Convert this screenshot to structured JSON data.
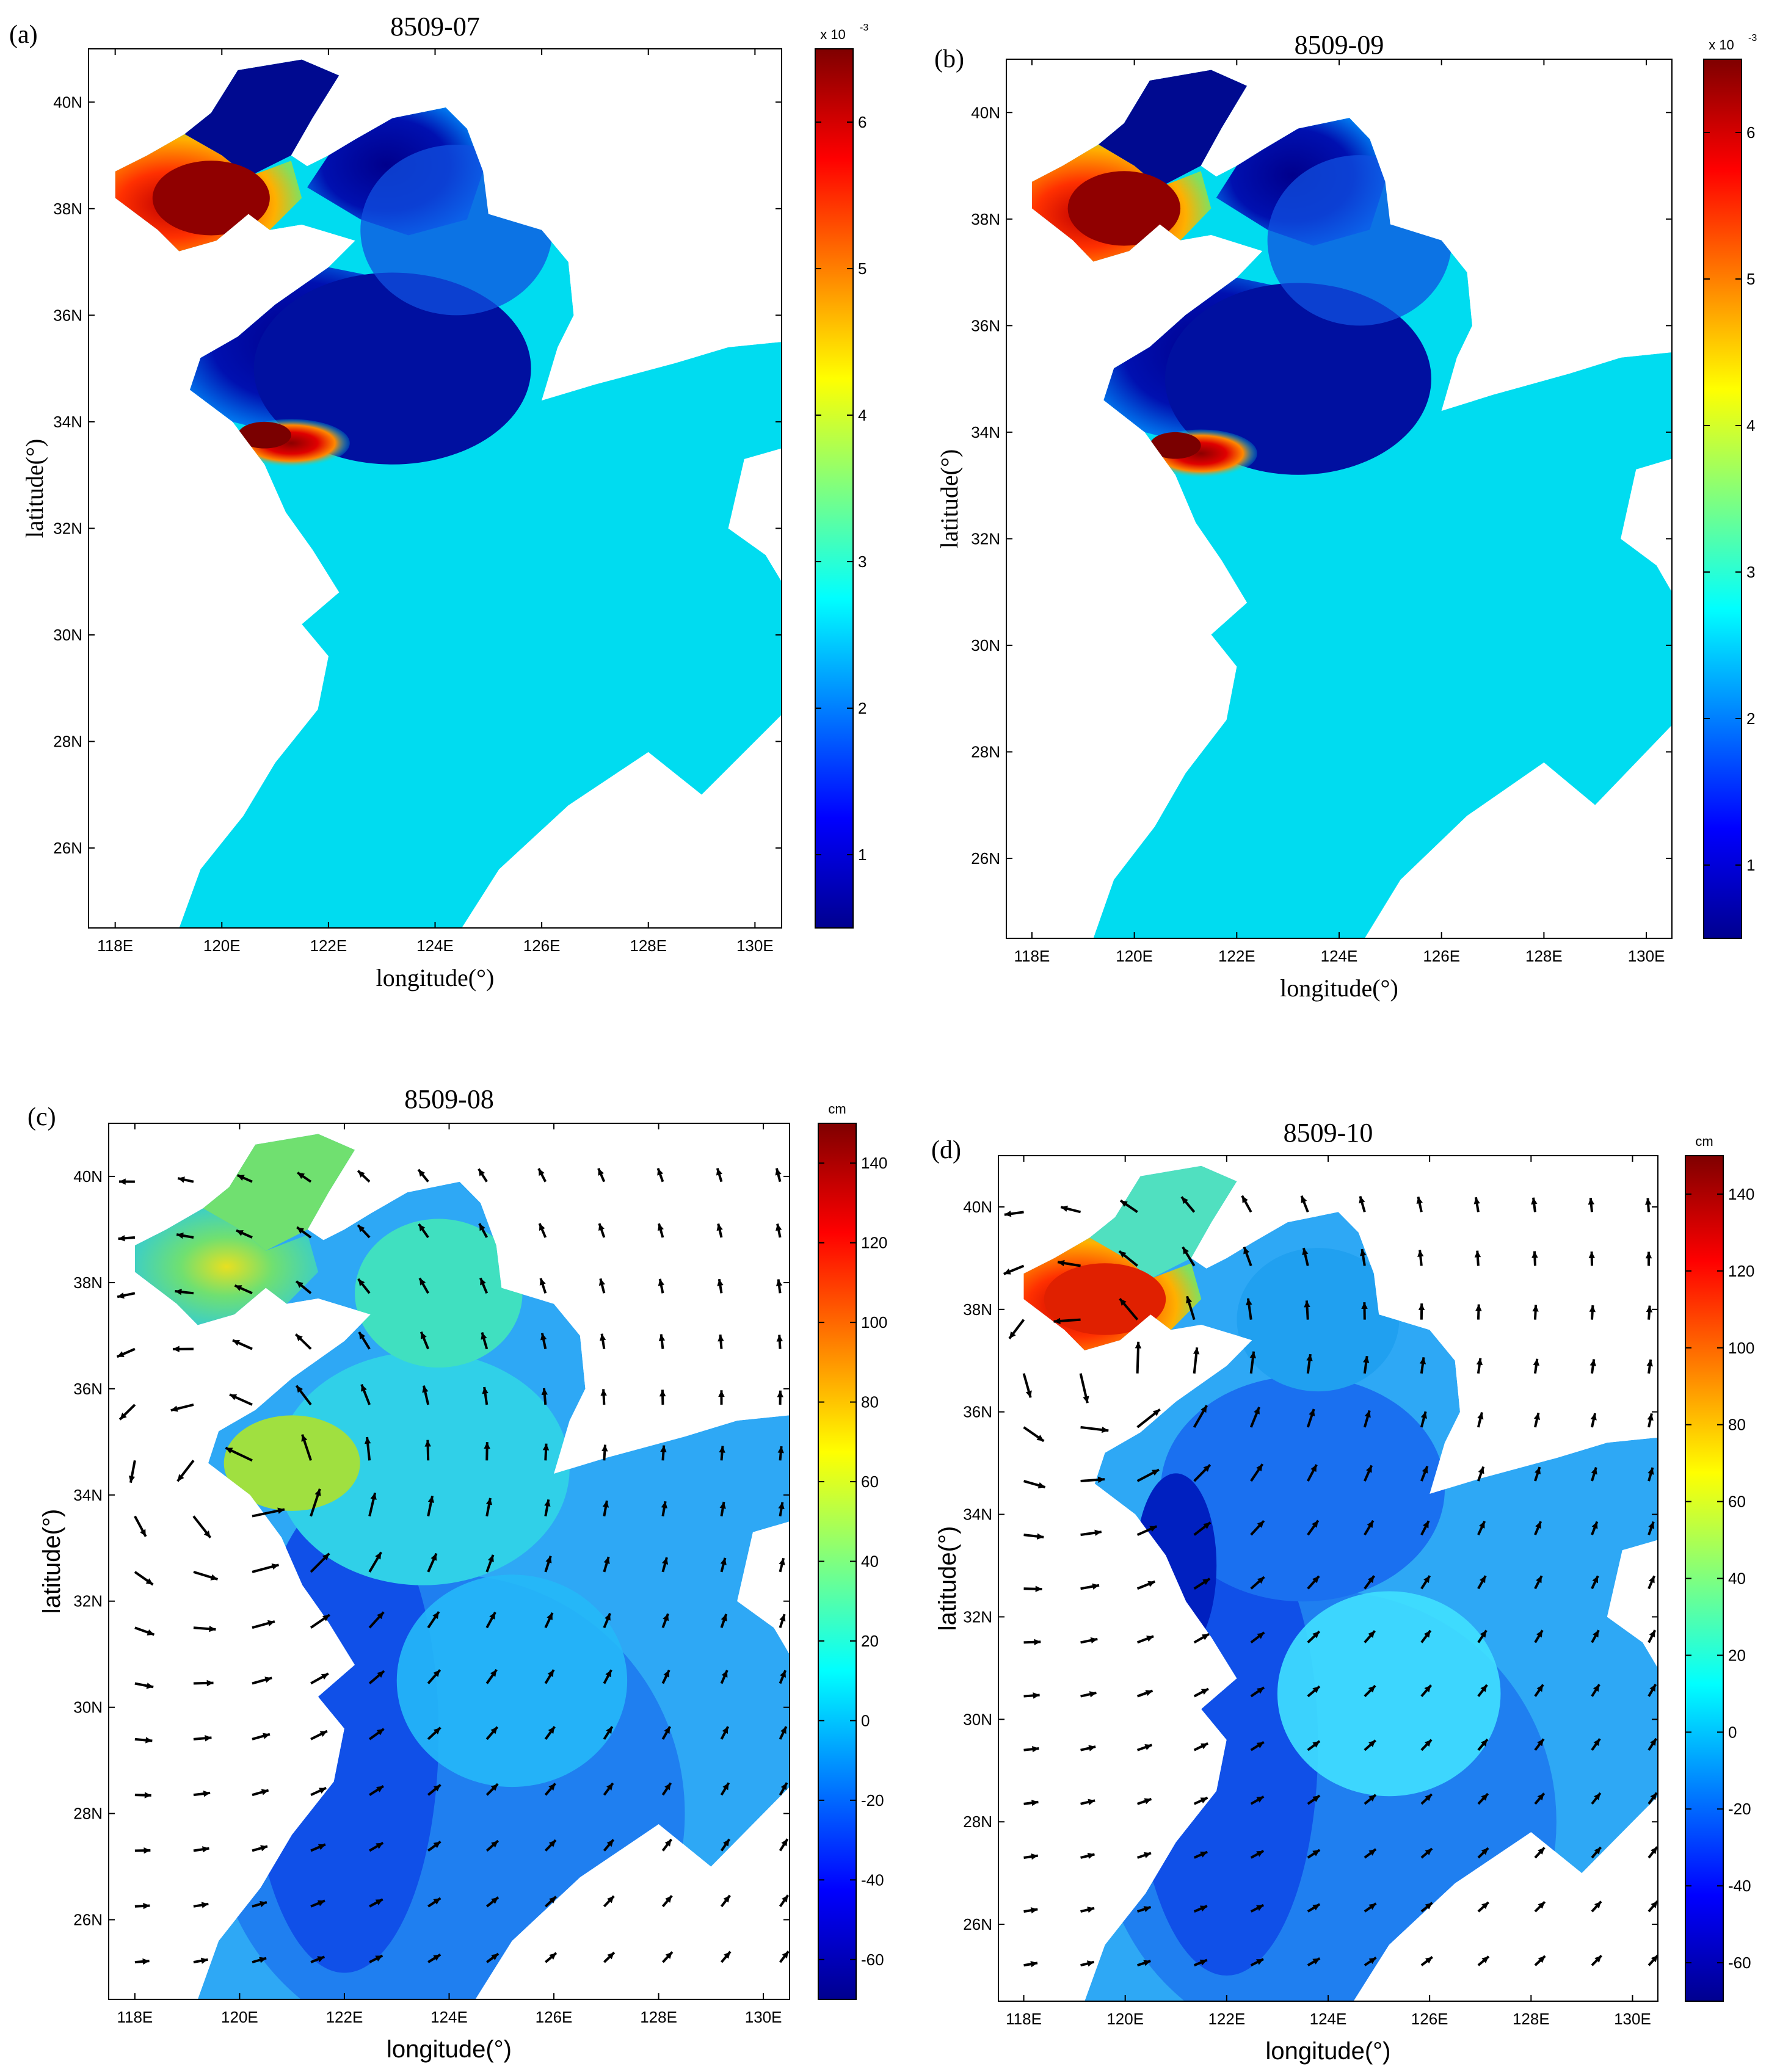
{
  "colors": {
    "jet": [
      "#00008f",
      "#0000ff",
      "#007fff",
      "#00ffff",
      "#7fff7f",
      "#ffff00",
      "#ff7f00",
      "#ff0000",
      "#7f0000"
    ],
    "sea_plain": "#00ccee",
    "arrow": "#000000"
  },
  "panels": [
    {
      "id": "a",
      "tag": "(a)",
      "title": "8509-07",
      "xlabel": "longitude(°)",
      "ylabel": "latitude(°)",
      "xticks": [
        "118E",
        "120E",
        "122E",
        "124E",
        "126E",
        "128E",
        "130E"
      ],
      "yticks": [
        "26N",
        "28N",
        "30N",
        "32N",
        "34N",
        "36N",
        "38N",
        "40N"
      ],
      "colorbar": {
        "unit": "x 10",
        "exponent": "-3",
        "ticks": [
          "1",
          "2",
          "3",
          "4",
          "5",
          "6"
        ],
        "range": [
          0.5,
          6.5
        ]
      },
      "icon": "contour-field"
    },
    {
      "id": "b",
      "tag": "(b)",
      "title": "8509-09",
      "xlabel": "longitude(°)",
      "ylabel": "latitude(°)",
      "xticks": [
        "118E",
        "120E",
        "122E",
        "124E",
        "126E",
        "128E",
        "130E"
      ],
      "yticks": [
        "26N",
        "28N",
        "30N",
        "32N",
        "34N",
        "36N",
        "38N",
        "40N"
      ],
      "colorbar": {
        "unit": "x 10",
        "exponent": "-3",
        "ticks": [
          "1",
          "2",
          "3",
          "4",
          "5",
          "6"
        ],
        "range": [
          0.5,
          6.5
        ]
      },
      "icon": "contour-field"
    },
    {
      "id": "c",
      "tag": "(c)",
      "title": "8509-08",
      "xlabel": "longitude(°)",
      "ylabel": "latitude(°)",
      "xticks": [
        "118E",
        "120E",
        "122E",
        "124E",
        "126E",
        "128E",
        "130E"
      ],
      "yticks": [
        "26N",
        "28N",
        "30N",
        "32N",
        "34N",
        "36N",
        "38N",
        "40N"
      ],
      "colorbar": {
        "unit": "cm",
        "exponent": "",
        "ticks": [
          "-60",
          "-40",
          "-20",
          "0",
          "20",
          "40",
          "60",
          "80",
          "100",
          "120",
          "140"
        ],
        "range": [
          -70,
          150
        ]
      },
      "icon": "vector-field"
    },
    {
      "id": "d",
      "tag": "(d)",
      "title": "8509-10",
      "xlabel": "longitude(°)",
      "ylabel": "latitude(°)",
      "xticks": [
        "118E",
        "120E",
        "122E",
        "124E",
        "126E",
        "128E",
        "130E"
      ],
      "yticks": [
        "26N",
        "28N",
        "30N",
        "32N",
        "34N",
        "36N",
        "38N",
        "40N"
      ],
      "colorbar": {
        "unit": "cm",
        "exponent": "",
        "ticks": [
          "-60",
          "-40",
          "-20",
          "0",
          "20",
          "40",
          "60",
          "80",
          "100",
          "120",
          "140"
        ],
        "range": [
          -70,
          150
        ]
      },
      "icon": "vector-field"
    }
  ],
  "chart_data": [
    {
      "type": "heatmap",
      "title": "8509-07",
      "xlabel": "longitude(°)",
      "ylabel": "latitude(°)",
      "xlim": [
        117.5,
        130.5
      ],
      "ylim": [
        24.5,
        41
      ],
      "colorbar_range": [
        0.5,
        6.5
      ],
      "colorbar_scale": "x 10^-3"
    },
    {
      "type": "heatmap",
      "title": "8509-09",
      "xlabel": "longitude(°)",
      "ylabel": "latitude(°)",
      "xlim": [
        117.5,
        130.5
      ],
      "ylim": [
        24.5,
        41
      ],
      "colorbar_range": [
        0.5,
        6.5
      ],
      "colorbar_scale": "x 10^-3"
    },
    {
      "type": "heatmap",
      "title": "8509-08",
      "xlabel": "longitude(°)",
      "ylabel": "latitude(°)",
      "xlim": [
        117.5,
        130.5
      ],
      "ylim": [
        24.5,
        41
      ],
      "colorbar_range": [
        -70,
        150
      ],
      "colorbar_unit": "cm"
    },
    {
      "type": "heatmap",
      "title": "8509-10",
      "xlabel": "longitude(°)",
      "ylabel": "latitude(°)",
      "xlim": [
        117.5,
        130.5
      ],
      "ylim": [
        24.5,
        41
      ],
      "colorbar_range": [
        -70,
        150
      ],
      "colorbar_unit": "cm"
    }
  ]
}
